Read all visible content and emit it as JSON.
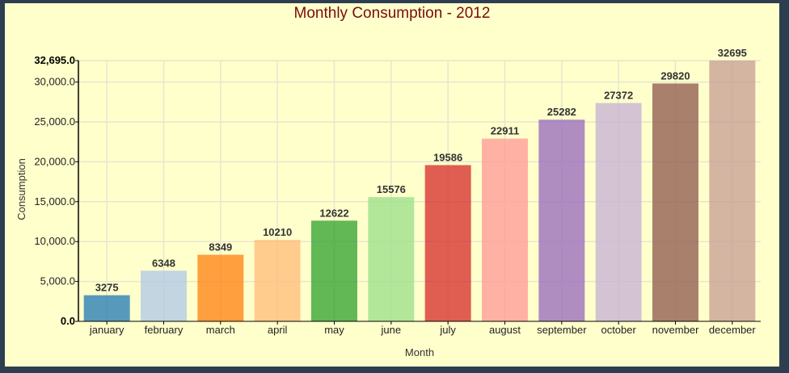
{
  "chart_data": {
    "type": "bar",
    "title": "Monthly Consumption - 2012",
    "xlabel": "Month",
    "ylabel": "Consumption",
    "categories": [
      "january",
      "february",
      "march",
      "april",
      "may",
      "june",
      "july",
      "august",
      "september",
      "october",
      "november",
      "december"
    ],
    "values": [
      3275,
      6348,
      8349,
      10210,
      12622,
      15576,
      19586,
      22911,
      25282,
      27372,
      29820,
      32695
    ],
    "colors": [
      "#1f77b4",
      "#aec7e8",
      "#ff7f0e",
      "#ffbb78",
      "#2ca02c",
      "#98df8a",
      "#d62728",
      "#ff9896",
      "#9467bd",
      "#c5b0d5",
      "#8c564b",
      "#c49c94"
    ],
    "ylim": [
      0,
      32695
    ],
    "yticks": [
      0,
      5000,
      10000,
      15000,
      20000,
      25000,
      30000,
      32695
    ],
    "ytick_labels": [
      "0.0",
      "5,000.0",
      "10,000.0",
      "15,000.0",
      "20,000.0",
      "25,000.0",
      "30,000.0",
      "32,695.0"
    ],
    "grid": true,
    "legend": "none"
  },
  "colors": {
    "background": "#ffffcc",
    "frame": "#2c3e50",
    "title": "#7a0c0c"
  }
}
